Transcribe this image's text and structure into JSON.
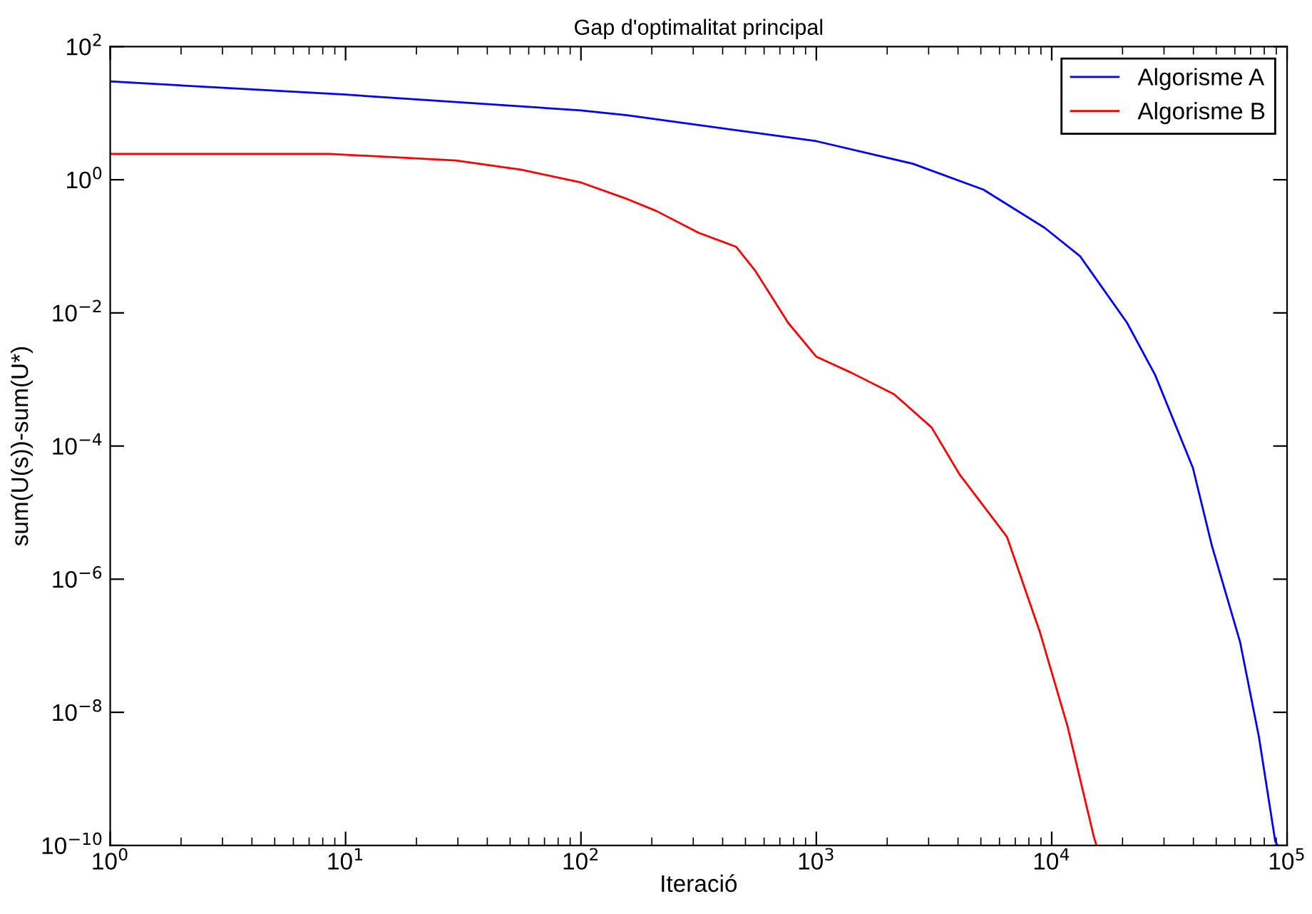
{
  "chart_data": {
    "type": "line",
    "title": "Gap d'optimalitat principal",
    "xlabel": "Iteració",
    "ylabel": "sum(U(s))-sum(U*)",
    "log": "xy",
    "xlim": [
      1,
      100000
    ],
    "ylim": [
      1e-10,
      100
    ],
    "xticks": [
      {
        "value": 1,
        "label": "10$^{0}$"
      },
      {
        "value": 10,
        "label": "10$^{1}$"
      },
      {
        "value": 100,
        "label": "10$^{2}$"
      },
      {
        "value": 1000,
        "label": "10$^{3}$"
      },
      {
        "value": 10000,
        "label": "10$^{4}$"
      },
      {
        "value": 100000,
        "label": "10$^{5}$"
      }
    ],
    "yticks": [
      {
        "value": 1e-10,
        "label": "10$^{−10}$"
      },
      {
        "value": 1e-08,
        "label": "10$^{−8}$"
      },
      {
        "value": 1e-06,
        "label": "10$^{−6}$"
      },
      {
        "value": 0.0001,
        "label": "10$^{−4}$"
      },
      {
        "value": 0.01,
        "label": "10$^{−2}$"
      },
      {
        "value": 1,
        "label": "10$^{0}$"
      },
      {
        "value": 100,
        "label": "10$^{2}$"
      }
    ],
    "grid": false,
    "legend": "top right",
    "line_style": "solid",
    "series": [
      {
        "name": "Algorisme A",
        "color": "#0000ff",
        "x": [
          1,
          10,
          100,
          157,
          1000,
          2570,
          5130,
          9330,
          13200,
          20900,
          27500,
          39800,
          47900,
          63100,
          75900,
          89100,
          91200
        ],
        "values": [
          30,
          19,
          11,
          9.3,
          3.8,
          1.74,
          0.71,
          0.19,
          0.071,
          0.0071,
          0.00117,
          4.7e-05,
          3.2e-06,
          1.15e-07,
          4.3e-09,
          1.15e-10,
          1e-10
        ]
      },
      {
        "name": "Algorisme B",
        "color": "#ff0000",
        "x": [
          1,
          8.5,
          29.5,
          56,
          100,
          158,
          209,
          316,
          457,
          550,
          759,
          1000,
          1410,
          2140,
          3090,
          4070,
          6460,
          8910,
          11700,
          15100,
          15500
        ],
        "values": [
          2.45,
          2.45,
          1.95,
          1.41,
          0.91,
          0.51,
          0.34,
          0.16,
          0.098,
          0.043,
          0.0071,
          0.0022,
          0.00126,
          0.0006,
          0.00019,
          3.7e-05,
          4.3e-06,
          1.6e-07,
          6e-09,
          1.35e-10,
          1e-10
        ]
      }
    ]
  }
}
